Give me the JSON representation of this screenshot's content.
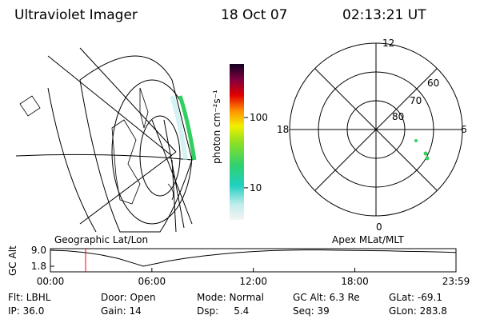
{
  "header": {
    "title": "Ultraviolet Imager",
    "date": "18 Oct 07",
    "time": "02:13:21 UT"
  },
  "colorbar": {
    "label": "photon cm⁻²s⁻¹",
    "log": true,
    "lim": [
      3.5,
      577
    ],
    "ticks": [
      {
        "value": 10,
        "label": "10"
      },
      {
        "value": 100,
        "label": "100"
      }
    ]
  },
  "polar_plot": {
    "mlt_labels": [
      "12",
      "18",
      "6",
      "0"
    ],
    "mlat_labels": [
      "60",
      "70",
      "80"
    ]
  },
  "map_titles": {
    "left": "Geographic Lat/Lon",
    "right": "Apex MLat/MLT"
  },
  "altitude_plot": {
    "type": "line",
    "ylabel": "GC Alt",
    "color": "#000000",
    "marker_color": "#ff0000",
    "x": [
      0,
      1,
      2,
      3,
      4,
      5,
      5.5,
      6,
      7,
      8,
      9,
      10,
      11,
      12,
      13,
      14,
      15,
      16,
      17,
      18,
      19,
      20,
      21,
      22,
      23,
      23.983
    ],
    "values": [
      9.0,
      8.7,
      8.0,
      6.9,
      5.3,
      3.0,
      1.8,
      2.6,
      4.2,
      5.4,
      6.4,
      7.2,
      7.9,
      8.4,
      8.8,
      9.0,
      9.1,
      9.1,
      9.0,
      8.9,
      8.8,
      8.7,
      8.5,
      8.4,
      8.2,
      8.0
    ],
    "xlim": [
      0,
      23.983
    ],
    "ylim": [
      -0.7,
      9.7
    ],
    "xticks": [
      {
        "value": 0,
        "label": "00:00"
      },
      {
        "value": 6,
        "label": "06:00"
      },
      {
        "value": 12,
        "label": "12:00"
      },
      {
        "value": 18,
        "label": "18:00"
      },
      {
        "value": 23.983,
        "label": "23:59"
      }
    ],
    "yticks": [
      {
        "value": 9.0,
        "label": "9.0"
      },
      {
        "value": 1.8,
        "label": "1.8"
      }
    ]
  },
  "footer": {
    "rows": [
      [
        "Flt: LBHL",
        "Door: Open",
        "Mode: Normal",
        "GC Alt: 6.3 Re",
        "GLat: -69.1"
      ],
      [
        "IP: 36.0",
        "Gain: 14",
        "Dsp:     5.4",
        "Seq: 39",
        "GLon: 283.8"
      ]
    ]
  }
}
